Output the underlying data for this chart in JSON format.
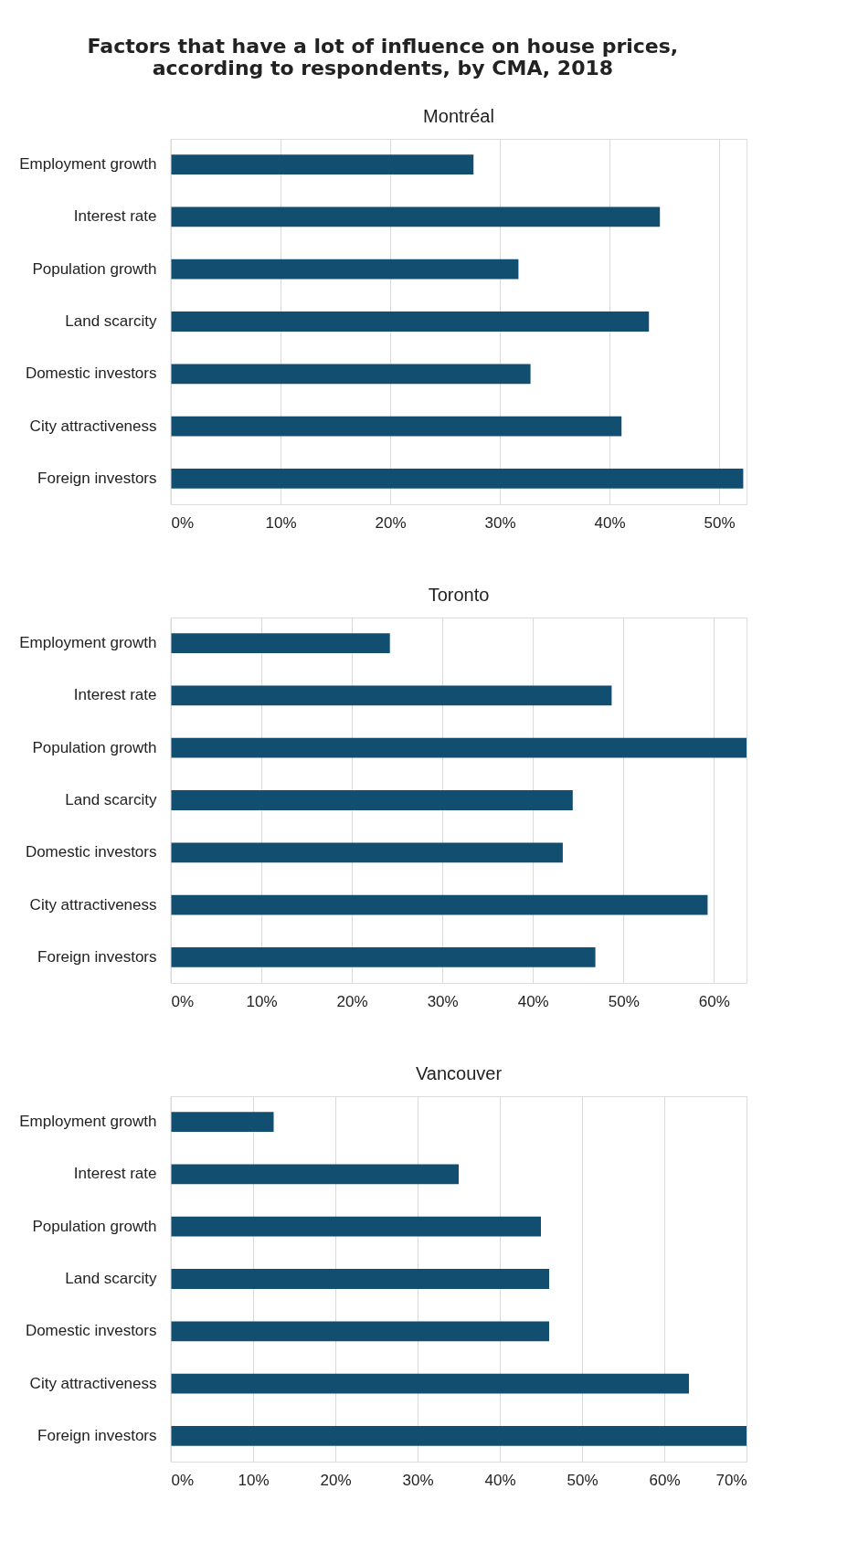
{
  "chart_data": [
    {
      "type": "bar",
      "orientation": "horizontal",
      "title": "Factors that have a lot of influence on house prices,\naccording to respondents, by CMA, 2018",
      "subtitle": "Montréal",
      "categories": [
        "Employment growth",
        "Interest rate",
        "Population growth",
        "Land scarcity",
        "Domestic investors",
        "City attractiveness",
        "Foreign investors"
      ],
      "values": [
        27.6,
        44.6,
        31.7,
        43.6,
        32.8,
        41.1,
        52.2
      ],
      "color": "#114e6f",
      "xlim": [
        0,
        52.5
      ],
      "xticks": [
        {
          "value": 0,
          "label": "0%"
        },
        {
          "value": 10,
          "label": "10%"
        },
        {
          "value": 20,
          "label": "20%"
        },
        {
          "value": 30,
          "label": "30%"
        },
        {
          "value": 40,
          "label": "40%"
        },
        {
          "value": 50,
          "label": "50%"
        }
      ],
      "grid": "x"
    },
    {
      "type": "bar",
      "orientation": "horizontal",
      "subtitle": "Toronto",
      "categories": [
        "Employment growth",
        "Interest rate",
        "Population growth",
        "Land scarcity",
        "Domestic investors",
        "City attractiveness",
        "Foreign investors"
      ],
      "values": [
        24.2,
        48.7,
        63.6,
        44.4,
        43.3,
        59.3,
        46.9
      ],
      "color": "#114e6f",
      "xlim": [
        0,
        63.6
      ],
      "xticks": [
        {
          "value": 0,
          "label": "0%"
        },
        {
          "value": 10,
          "label": "10%"
        },
        {
          "value": 20,
          "label": "20%"
        },
        {
          "value": 30,
          "label": "30%"
        },
        {
          "value": 40,
          "label": "40%"
        },
        {
          "value": 50,
          "label": "50%"
        },
        {
          "value": 60,
          "label": "60%"
        }
      ],
      "grid": "x"
    },
    {
      "type": "bar",
      "orientation": "horizontal",
      "subtitle": "Vancouver",
      "categories": [
        "Employment growth",
        "Interest rate",
        "Population growth",
        "Land scarcity",
        "Domestic investors",
        "City attractiveness",
        "Foreign investors"
      ],
      "values": [
        12.5,
        35.0,
        45.0,
        46.0,
        46.0,
        63.0,
        70.0
      ],
      "color": "#114e6f",
      "xlim": [
        0,
        70
      ],
      "xticks": [
        {
          "value": 0,
          "label": "0%"
        },
        {
          "value": 10,
          "label": "10%"
        },
        {
          "value": 20,
          "label": "20%"
        },
        {
          "value": 30,
          "label": "30%"
        },
        {
          "value": 40,
          "label": "40%"
        },
        {
          "value": 50,
          "label": "50%"
        },
        {
          "value": 60,
          "label": "60%"
        },
        {
          "value": 70,
          "label": "70%"
        }
      ],
      "grid": "x"
    }
  ]
}
